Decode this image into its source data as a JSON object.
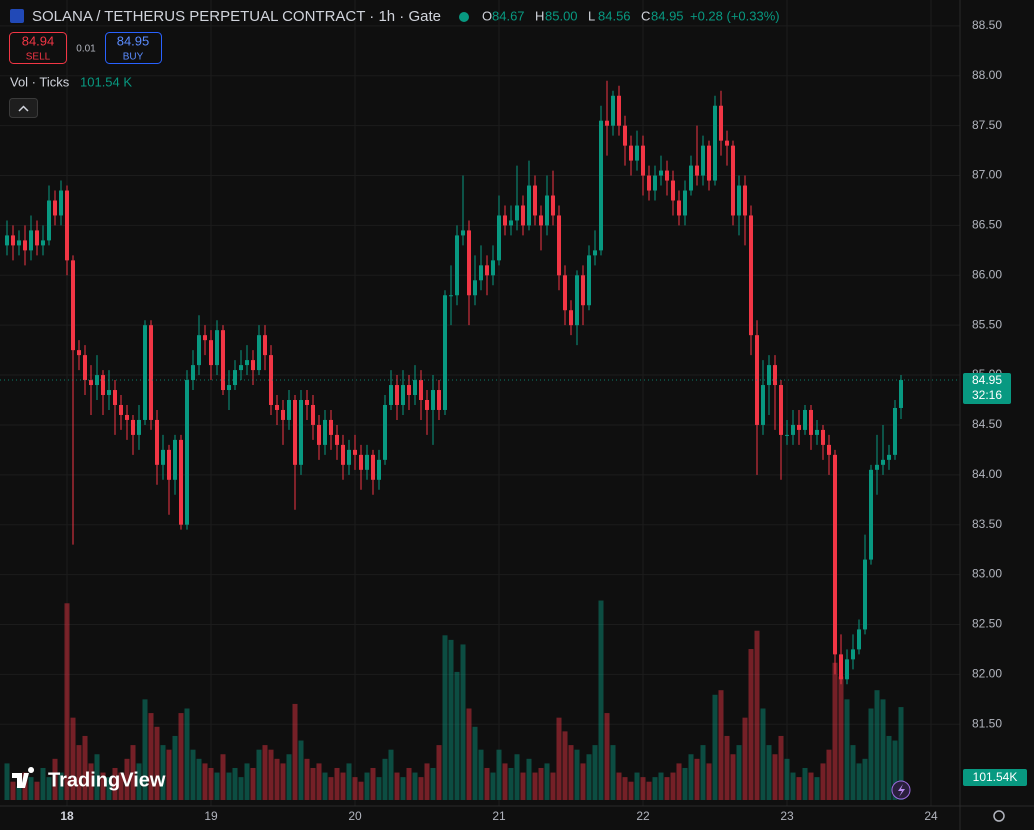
{
  "header": {
    "title": "SOLANA / TETHERUS PERPETUAL CONTRACT · 1h · Gate",
    "ohlc": [
      {
        "label": "O",
        "value": "84.67"
      },
      {
        "label": "H",
        "value": "85.00"
      },
      {
        "label": "L",
        "value": "84.56"
      },
      {
        "label": "C",
        "value": "84.95"
      }
    ],
    "change": "+0.28 (+0.33%)",
    "sell": {
      "price": "84.94",
      "label": "SELL"
    },
    "spread": "0.01",
    "buy": {
      "price": "84.95",
      "label": "BUY"
    },
    "volume_legend": {
      "label": "Vol · Ticks",
      "value": "101.54 K"
    }
  },
  "price_tag": {
    "price": "84.95",
    "countdown": "32:16"
  },
  "volume_tag": "101.54K",
  "logo": "TradingView",
  "chart_data": {
    "type": "candlestick",
    "ylim": [
      80.74,
      88.76
    ],
    "yticks": [
      {
        "value": 81.5,
        "label": "81.50"
      },
      {
        "value": 82,
        "label": "82.00"
      },
      {
        "value": 82.5,
        "label": "82.50"
      },
      {
        "value": 83,
        "label": "83.00"
      },
      {
        "value": 83.5,
        "label": "83.50"
      },
      {
        "value": 84,
        "label": "84.00"
      },
      {
        "value": 84.5,
        "label": "84.50"
      },
      {
        "value": 85,
        "label": "85.00"
      },
      {
        "value": 85.5,
        "label": "85.50"
      },
      {
        "value": 86,
        "label": "86.00"
      },
      {
        "value": 86.5,
        "label": "86.50"
      },
      {
        "value": 87,
        "label": "87.00"
      },
      {
        "value": 87.5,
        "label": "87.50"
      },
      {
        "value": 88,
        "label": "88.00"
      },
      {
        "value": 88.5,
        "label": "88.50"
      }
    ],
    "xticks": [
      "18",
      "19",
      "20",
      "21",
      "22",
      "23",
      "24"
    ],
    "up_color": "#089981",
    "down_color": "#f23645",
    "grid": true,
    "open": [
      86.3,
      86.4,
      86.3,
      86.35,
      86.25,
      86.45,
      86.3,
      86.35,
      86.75,
      86.6,
      86.85,
      86.15,
      85.25,
      85.2,
      84.95,
      84.9,
      85.0,
      84.8,
      84.85,
      84.7,
      84.6,
      84.55,
      84.4,
      84.55,
      85.5,
      84.55,
      84.1,
      84.25,
      83.95,
      84.35,
      83.5,
      84.95,
      85.1,
      85.4,
      85.35,
      85.1,
      85.45,
      84.85,
      84.9,
      85.05,
      85.1,
      85.15,
      85.05,
      85.4,
      85.2,
      84.7,
      84.65,
      84.55,
      84.75,
      84.1,
      84.75,
      84.7,
      84.5,
      84.3,
      84.55,
      84.4,
      84.3,
      84.1,
      84.25,
      84.2,
      84.05,
      84.2,
      83.95,
      84.15,
      84.7,
      84.9,
      84.7,
      84.9,
      84.8,
      84.95,
      84.75,
      84.65,
      84.85,
      84.65,
      85.8,
      85.8,
      86.4,
      86.45,
      85.8,
      85.95,
      86.1,
      86.0,
      86.15,
      86.6,
      86.5,
      86.55,
      86.7,
      86.5,
      86.9,
      86.6,
      86.5,
      86.8,
      86.6,
      86.0,
      85.65,
      85.5,
      86.0,
      85.7,
      86.2,
      86.25,
      87.55,
      87.5,
      87.8,
      87.5,
      87.3,
      87.15,
      87.3,
      87.0,
      86.85,
      87.0,
      87.05,
      86.95,
      86.75,
      86.6,
      86.85,
      87.1,
      87.0,
      87.3,
      86.95,
      87.7,
      87.35,
      87.3,
      86.6,
      86.9,
      86.6,
      85.4,
      84.5,
      84.9,
      85.1,
      84.9,
      84.4,
      84.4,
      84.5,
      84.45,
      84.65,
      84.4,
      84.45,
      84.3,
      84.2,
      82.2,
      81.95,
      82.15,
      82.25,
      82.45,
      83.15,
      84.05,
      84.1,
      84.15,
      84.2,
      84.67
    ],
    "high": [
      86.55,
      86.5,
      86.45,
      86.5,
      86.6,
      86.55,
      86.5,
      86.9,
      86.85,
      86.95,
      86.9,
      86.2,
      85.35,
      85.3,
      85.1,
      85.2,
      85.05,
      85.05,
      84.95,
      84.8,
      84.7,
      84.6,
      84.7,
      85.55,
      85.55,
      84.65,
      84.4,
      84.3,
      84.4,
      84.4,
      85.05,
      85.25,
      85.6,
      85.5,
      85.45,
      85.55,
      85.5,
      85.05,
      85.15,
      85.25,
      85.3,
      85.25,
      85.5,
      85.5,
      85.3,
      84.8,
      84.75,
      84.85,
      84.8,
      84.85,
      84.85,
      84.8,
      84.6,
      84.65,
      84.65,
      84.5,
      84.4,
      84.35,
      84.4,
      84.3,
      84.3,
      84.25,
      84.25,
      84.8,
      85.05,
      85.0,
      85.05,
      85.0,
      85.1,
      85.05,
      84.85,
      85.0,
      84.95,
      85.85,
      86.1,
      86.5,
      87.0,
      86.55,
      86.2,
      86.3,
      86.2,
      86.3,
      86.8,
      86.7,
      86.7,
      87.1,
      86.8,
      87.15,
      87.0,
      86.7,
      87.0,
      87.05,
      86.7,
      86.1,
      85.75,
      86.05,
      86.1,
      86.3,
      86.45,
      87.7,
      87.95,
      87.85,
      87.9,
      87.6,
      87.4,
      87.45,
      87.4,
      87.1,
      87.1,
      87.2,
      87.15,
      87.05,
      86.85,
      86.95,
      87.2,
      87.5,
      87.4,
      87.35,
      87.8,
      87.85,
      87.45,
      87.35,
      87.0,
      87.0,
      86.7,
      85.55,
      85.15,
      85.2,
      85.2,
      84.95,
      84.55,
      84.65,
      84.65,
      84.7,
      84.7,
      84.55,
      84.5,
      84.4,
      84.25,
      82.4,
      82.25,
      82.4,
      82.55,
      83.4,
      84.1,
      84.4,
      84.5,
      84.3,
      84.75,
      85.0
    ],
    "low": [
      86.2,
      86.15,
      86.2,
      86.1,
      86.15,
      86.2,
      86.2,
      86.3,
      86.5,
      86.5,
      86.0,
      83.3,
      85.05,
      84.8,
      84.6,
      84.75,
      84.6,
      84.65,
      84.4,
      84.45,
      84.35,
      84.2,
      84.25,
      84.5,
      84.45,
      83.9,
      83.95,
      83.6,
      83.8,
      83.45,
      83.45,
      84.85,
      85.0,
      85.2,
      84.95,
      85.0,
      84.8,
      84.65,
      84.85,
      84.95,
      85.0,
      84.9,
      85.0,
      85.05,
      84.6,
      84.5,
      84.3,
      84.45,
      83.65,
      84.0,
      84.55,
      84.35,
      84.15,
      84.2,
      84.25,
      84.15,
      83.95,
      84.0,
      84.05,
      83.85,
      83.95,
      83.8,
      83.85,
      84.1,
      84.65,
      84.55,
      84.6,
      84.65,
      84.7,
      84.55,
      84.4,
      84.3,
      84.55,
      84.6,
      85.5,
      85.7,
      86.3,
      85.5,
      85.7,
      85.85,
      85.8,
      85.9,
      86.1,
      86.4,
      86.4,
      86.45,
      86.4,
      86.45,
      86.5,
      86.25,
      86.4,
      86.5,
      85.85,
      85.5,
      85.4,
      85.3,
      85.5,
      85.65,
      86.1,
      86.2,
      87.2,
      87.4,
      87.4,
      87.1,
      87.0,
      87.05,
      86.8,
      86.75,
      86.75,
      86.9,
      86.8,
      86.6,
      86.5,
      86.5,
      86.8,
      86.9,
      86.9,
      86.85,
      86.9,
      87.2,
      87.1,
      86.5,
      86.4,
      86.3,
      85.2,
      84.0,
      84.4,
      84.6,
      84.45,
      83.95,
      84.3,
      84.3,
      84.3,
      84.4,
      84.25,
      84.3,
      84.15,
      84.0,
      82.0,
      81.9,
      81.9,
      82.05,
      82.2,
      82.4,
      83.1,
      83.8,
      84.0,
      84.05,
      84.15,
      84.56
    ],
    "close": [
      86.4,
      86.3,
      86.35,
      86.25,
      86.45,
      86.3,
      86.35,
      86.75,
      86.6,
      86.85,
      86.15,
      85.25,
      85.2,
      84.95,
      84.9,
      85.0,
      84.8,
      84.85,
      84.7,
      84.6,
      84.55,
      84.4,
      84.55,
      85.5,
      84.55,
      84.1,
      84.25,
      83.95,
      84.35,
      83.5,
      84.95,
      85.1,
      85.4,
      85.35,
      85.1,
      85.45,
      84.85,
      84.9,
      85.05,
      85.1,
      85.15,
      85.05,
      85.4,
      85.2,
      84.7,
      84.65,
      84.55,
      84.75,
      84.1,
      84.75,
      84.7,
      84.5,
      84.3,
      84.55,
      84.4,
      84.3,
      84.1,
      84.25,
      84.2,
      84.05,
      84.2,
      83.95,
      84.15,
      84.7,
      84.9,
      84.7,
      84.9,
      84.8,
      84.95,
      84.75,
      84.65,
      84.85,
      84.65,
      85.8,
      85.8,
      86.4,
      86.45,
      85.8,
      85.95,
      86.1,
      86.0,
      86.15,
      86.6,
      86.5,
      86.55,
      86.7,
      86.5,
      86.9,
      86.6,
      86.5,
      86.8,
      86.6,
      86.0,
      85.65,
      85.5,
      86.0,
      85.7,
      86.2,
      86.25,
      87.55,
      87.5,
      87.8,
      87.5,
      87.3,
      87.15,
      87.3,
      87.0,
      86.85,
      87.0,
      87.05,
      86.95,
      86.75,
      86.6,
      86.85,
      87.1,
      87.0,
      87.3,
      86.95,
      87.7,
      87.35,
      87.3,
      86.6,
      86.9,
      86.6,
      85.4,
      84.5,
      84.9,
      85.1,
      84.9,
      84.4,
      84.4,
      84.5,
      84.45,
      84.65,
      84.4,
      84.45,
      84.3,
      84.2,
      82.2,
      81.95,
      82.15,
      82.25,
      82.45,
      83.15,
      84.05,
      84.1,
      84.15,
      84.2,
      84.67,
      84.95
    ],
    "volume": [
      40000,
      20000,
      15000,
      30000,
      25000,
      20000,
      35000,
      25000,
      45000,
      30000,
      215000,
      90000,
      60000,
      70000,
      40000,
      50000,
      30000,
      25000,
      35000,
      30000,
      45000,
      60000,
      40000,
      110000,
      95000,
      80000,
      60000,
      55000,
      70000,
      95000,
      100000,
      55000,
      45000,
      40000,
      35000,
      30000,
      50000,
      30000,
      35000,
      25000,
      40000,
      35000,
      55000,
      60000,
      55000,
      45000,
      40000,
      50000,
      105000,
      65000,
      45000,
      35000,
      40000,
      30000,
      25000,
      35000,
      30000,
      40000,
      25000,
      20000,
      30000,
      35000,
      25000,
      45000,
      55000,
      30000,
      25000,
      35000,
      30000,
      25000,
      40000,
      35000,
      60000,
      180000,
      175000,
      140000,
      170000,
      100000,
      80000,
      55000,
      35000,
      30000,
      55000,
      40000,
      35000,
      50000,
      30000,
      45000,
      30000,
      35000,
      40000,
      30000,
      90000,
      75000,
      60000,
      55000,
      40000,
      50000,
      60000,
      218000,
      95000,
      60000,
      30000,
      25000,
      20000,
      30000,
      25000,
      20000,
      25000,
      30000,
      25000,
      30000,
      40000,
      35000,
      50000,
      45000,
      60000,
      40000,
      115000,
      120000,
      70000,
      50000,
      60000,
      90000,
      165000,
      185000,
      100000,
      60000,
      50000,
      70000,
      45000,
      30000,
      25000,
      35000,
      30000,
      25000,
      40000,
      55000,
      150000,
      135000,
      110000,
      60000,
      40000,
      45000,
      100000,
      120000,
      110000,
      70000,
      65000,
      101540
    ]
  }
}
